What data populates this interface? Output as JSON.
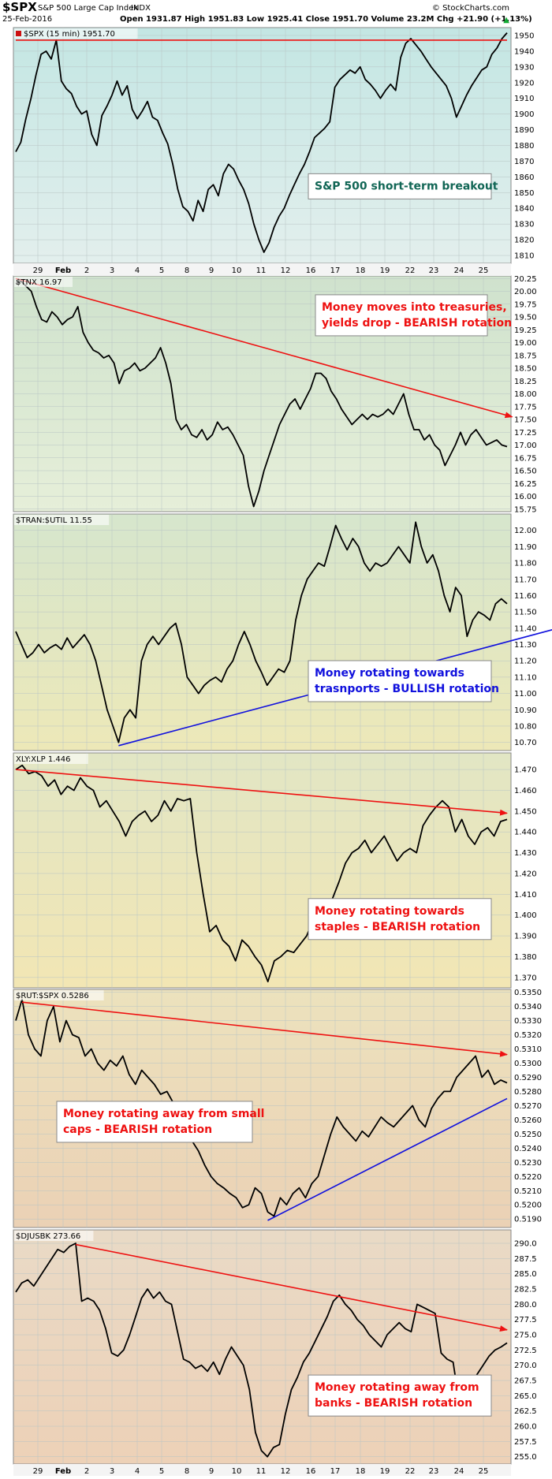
{
  "header": {
    "symbol": "$SPX",
    "name": "S&P 500 Large Cap Index",
    "exchange": "INDX",
    "date": "25-Feb-2016",
    "ohlc": "Open 1931.87  High 1951.83  Low 1925.41  Close 1951.70  Volume 23.2M  Chg +21.90 (+1.13%)",
    "arrow": "▲",
    "watermark": "© StockCharts.com"
  },
  "x_labels": [
    "29",
    "Feb",
    "2",
    "3",
    "4",
    "5",
    "8",
    "9",
    "10",
    "11",
    "12",
    "16",
    "17",
    "18",
    "19",
    "22",
    "23",
    "24",
    "25"
  ],
  "colors": {
    "price": "#000000",
    "red_line": "#ee1111",
    "blue_line": "#1111dd",
    "grid": "#b8c4c4"
  },
  "chart_data": [
    {
      "type": "line",
      "label": "$SPX (15 min) 1951.70",
      "legend_marker": true,
      "ylim": [
        1805,
        1955
      ],
      "y_ticks": [
        "1950",
        "1940",
        "1930",
        "1920",
        "1910",
        "1900",
        "1890",
        "1880",
        "1870",
        "1860",
        "1850",
        "1840",
        "1830",
        "1820",
        "1810"
      ],
      "bg": [
        "#c3e6e3",
        "#e3efed"
      ],
      "values": [
        1876,
        1882,
        1897,
        1910,
        1925,
        1938,
        1940,
        1935,
        1947,
        1921,
        1916,
        1913,
        1905,
        1900,
        1902,
        1887,
        1880,
        1899,
        1905,
        1912,
        1921,
        1912,
        1918,
        1903,
        1897,
        1902,
        1908,
        1898,
        1896,
        1888,
        1881,
        1868,
        1852,
        1841,
        1838,
        1832,
        1845,
        1838,
        1852,
        1855,
        1848,
        1862,
        1868,
        1865,
        1858,
        1852,
        1843,
        1830,
        1820,
        1812,
        1818,
        1828,
        1835,
        1840,
        1848,
        1855,
        1862,
        1868,
        1876,
        1885,
        1888,
        1891,
        1895,
        1917,
        1922,
        1925,
        1928,
        1926,
        1930,
        1922,
        1919,
        1915,
        1910,
        1915,
        1919,
        1915,
        1936,
        1945,
        1948,
        1944,
        1940,
        1935,
        1930,
        1926,
        1922,
        1918,
        1910,
        1898,
        1905,
        1912,
        1918,
        1923,
        1928,
        1930,
        1938,
        1942,
        1948,
        1951.7
      ],
      "title": "",
      "xlabel": "",
      "ylabel": "",
      "lines": [
        {
          "color": "red",
          "from": [
            0,
            1947
          ],
          "to": [
            97,
            1947
          ],
          "arrow": false
        }
      ],
      "annotation": {
        "text": [
          "S&P 500 short-term breakout"
        ],
        "color": "#116655",
        "position": "bottom-right"
      }
    },
    {
      "type": "line",
      "label": "$TNX 16.97",
      "legend_marker": false,
      "ylim": [
        15.7,
        20.3
      ],
      "y_ticks": [
        "20.25",
        "20.00",
        "19.75",
        "19.50",
        "19.25",
        "19.00",
        "18.75",
        "18.50",
        "18.25",
        "18.00",
        "17.75",
        "17.50",
        "17.25",
        "17.00",
        "16.75",
        "16.50",
        "16.25",
        "16.00",
        "15.75"
      ],
      "bg": [
        "#cfe2cd",
        "#e6efd9"
      ],
      "values": [
        20.15,
        20.2,
        20.1,
        20.0,
        19.7,
        19.45,
        19.4,
        19.6,
        19.5,
        19.35,
        19.45,
        19.5,
        19.7,
        19.2,
        19.0,
        18.85,
        18.8,
        18.7,
        18.75,
        18.6,
        18.2,
        18.45,
        18.5,
        18.6,
        18.45,
        18.5,
        18.6,
        18.7,
        18.9,
        18.6,
        18.2,
        17.5,
        17.3,
        17.4,
        17.2,
        17.15,
        17.3,
        17.1,
        17.2,
        17.45,
        17.3,
        17.35,
        17.2,
        17.0,
        16.8,
        16.2,
        15.8,
        16.1,
        16.5,
        16.8,
        17.1,
        17.4,
        17.6,
        17.8,
        17.9,
        17.7,
        17.9,
        18.1,
        18.4,
        18.4,
        18.3,
        18.05,
        17.9,
        17.7,
        17.55,
        17.4,
        17.5,
        17.6,
        17.5,
        17.6,
        17.55,
        17.6,
        17.7,
        17.6,
        17.8,
        18.0,
        17.6,
        17.3,
        17.3,
        17.1,
        17.2,
        17.0,
        16.9,
        16.6,
        16.8,
        17.0,
        17.25,
        17.0,
        17.2,
        17.3,
        17.15,
        17.0,
        17.05,
        17.1,
        17.0,
        16.97
      ],
      "lines": [
        {
          "color": "red",
          "from": [
            0,
            20.25
          ],
          "to": [
            96,
            17.55
          ],
          "arrow": true
        }
      ],
      "annotation": {
        "text": [
          "Money moves into treasuries,",
          "yields drop - BEARISH rotation"
        ],
        "color": "#ee1111",
        "position": "top-right"
      }
    },
    {
      "type": "line",
      "label": "$TRAN:$UTIL 11.55",
      "legend_marker": false,
      "ylim": [
        10.65,
        12.1
      ],
      "y_ticks": [
        "12.00",
        "11.90",
        "11.80",
        "11.70",
        "11.60",
        "11.50",
        "11.40",
        "11.30",
        "11.20",
        "11.10",
        "11.00",
        "10.90",
        "10.80",
        "10.70"
      ],
      "bg": [
        "#d6e6cd",
        "#ede8b8"
      ],
      "values": [
        11.38,
        11.3,
        11.22,
        11.25,
        11.3,
        11.25,
        11.28,
        11.3,
        11.27,
        11.34,
        11.28,
        11.32,
        11.36,
        11.3,
        11.2,
        11.05,
        10.9,
        10.8,
        10.7,
        10.85,
        10.9,
        10.85,
        11.2,
        11.3,
        11.35,
        11.3,
        11.35,
        11.4,
        11.43,
        11.3,
        11.1,
        11.05,
        11.0,
        11.05,
        11.08,
        11.1,
        11.07,
        11.15,
        11.2,
        11.3,
        11.38,
        11.3,
        11.2,
        11.13,
        11.05,
        11.1,
        11.15,
        11.13,
        11.2,
        11.45,
        11.6,
        11.7,
        11.75,
        11.8,
        11.78,
        11.9,
        12.03,
        11.95,
        11.88,
        11.95,
        11.9,
        11.8,
        11.75,
        11.8,
        11.78,
        11.8,
        11.85,
        11.9,
        11.85,
        11.8,
        12.05,
        11.9,
        11.8,
        11.85,
        11.75,
        11.6,
        11.5,
        11.65,
        11.6,
        11.35,
        11.45,
        11.5,
        11.48,
        11.45,
        11.55,
        11.58,
        11.55
      ],
      "lines": [
        {
          "color": "blue",
          "from": [
            18,
            10.68
          ],
          "to": [
            96,
            11.41
          ],
          "arrow": true
        }
      ],
      "annotation": {
        "text": [
          "Money rotating towards",
          "trasnports - BULLISH rotation"
        ],
        "color": "#1111dd",
        "position": "bottom-right"
      }
    },
    {
      "type": "line",
      "label": "XLY:XLP 1.446",
      "legend_marker": false,
      "ylim": [
        1.365,
        1.478
      ],
      "y_ticks": [
        "1.470",
        "1.460",
        "1.450",
        "1.440",
        "1.430",
        "1.420",
        "1.410",
        "1.400",
        "1.390",
        "1.380",
        "1.370"
      ],
      "bg": [
        "#e2e6c4",
        "#f2e6b4"
      ],
      "values": [
        1.47,
        1.472,
        1.468,
        1.469,
        1.467,
        1.462,
        1.465,
        1.458,
        1.462,
        1.46,
        1.466,
        1.462,
        1.46,
        1.452,
        1.455,
        1.45,
        1.445,
        1.438,
        1.445,
        1.448,
        1.45,
        1.445,
        1.448,
        1.455,
        1.45,
        1.456,
        1.455,
        1.456,
        1.43,
        1.41,
        1.392,
        1.395,
        1.388,
        1.385,
        1.378,
        1.388,
        1.385,
        1.38,
        1.376,
        1.368,
        1.378,
        1.38,
        1.383,
        1.382,
        1.386,
        1.39,
        1.398,
        1.402,
        1.4,
        1.408,
        1.416,
        1.425,
        1.43,
        1.432,
        1.436,
        1.43,
        1.434,
        1.438,
        1.432,
        1.426,
        1.43,
        1.432,
        1.43,
        1.443,
        1.448,
        1.452,
        1.455,
        1.452,
        1.44,
        1.446,
        1.438,
        1.434,
        1.44,
        1.442,
        1.438,
        1.445,
        1.446
      ],
      "lines": [
        {
          "color": "red",
          "from": [
            0,
            1.47
          ],
          "to": [
            76,
            1.449
          ],
          "arrow": true
        }
      ],
      "annotation": {
        "text": [
          "Money rotating towards",
          "staples - BEARISH rotation"
        ],
        "color": "#ee1111",
        "position": "bottom-right"
      }
    },
    {
      "type": "line",
      "label": "$RUT:$SPX 0.5286",
      "legend_marker": false,
      "ylim": [
        0.5184,
        0.5352
      ],
      "y_ticks": [
        "0.5350",
        "0.5340",
        "0.5330",
        "0.5320",
        "0.5310",
        "0.5300",
        "0.5290",
        "0.5280",
        "0.5270",
        "0.5260",
        "0.5250",
        "0.5240",
        "0.5230",
        "0.5220",
        "0.5210",
        "0.5200",
        "0.5190"
      ],
      "bg": [
        "#ece2bd",
        "#ebd1b5"
      ],
      "values": [
        0.533,
        0.5345,
        0.532,
        0.531,
        0.5305,
        0.533,
        0.534,
        0.5315,
        0.533,
        0.532,
        0.5318,
        0.5305,
        0.531,
        0.53,
        0.5295,
        0.5302,
        0.5298,
        0.5305,
        0.5292,
        0.5285,
        0.5295,
        0.529,
        0.5285,
        0.5278,
        0.528,
        0.5272,
        0.5268,
        0.5255,
        0.5245,
        0.5238,
        0.5228,
        0.522,
        0.5215,
        0.5212,
        0.5208,
        0.5205,
        0.5198,
        0.52,
        0.5212,
        0.5208,
        0.5195,
        0.5192,
        0.5205,
        0.52,
        0.5208,
        0.5212,
        0.5205,
        0.5215,
        0.522,
        0.5235,
        0.525,
        0.5262,
        0.5255,
        0.525,
        0.5245,
        0.5252,
        0.5248,
        0.5255,
        0.5262,
        0.5258,
        0.5255,
        0.526,
        0.5265,
        0.527,
        0.526,
        0.5255,
        0.5268,
        0.5275,
        0.528,
        0.528,
        0.529,
        0.5295,
        0.53,
        0.5305,
        0.529,
        0.5295,
        0.5285,
        0.5288,
        0.5286
      ],
      "lines": [
        {
          "color": "red",
          "from": [
            1,
            0.5343
          ],
          "to": [
            78,
            0.5306
          ],
          "arrow": true
        },
        {
          "color": "blue",
          "from": [
            40,
            0.5189
          ],
          "to": [
            78,
            0.5275
          ],
          "arrow": false
        }
      ],
      "annotation": {
        "text": [
          "Money rotating away from small",
          "caps - BEARISH rotation"
        ],
        "color": "#ee1111",
        "position": "center-left"
      }
    },
    {
      "type": "line",
      "label": "$DJUSBK 273.66",
      "legend_marker": false,
      "ylim": [
        253.8,
        292.2
      ],
      "y_ticks": [
        "290.0",
        "287.5",
        "285.0",
        "282.5",
        "280.0",
        "277.5",
        "275.0",
        "272.5",
        "270.0",
        "267.5",
        "265.0",
        "262.5",
        "260.0",
        "257.5",
        "255.0"
      ],
      "bg": [
        "#e9dac6",
        "#edd1b7"
      ],
      "values": [
        282.0,
        283.5,
        284.0,
        283.0,
        284.5,
        286.0,
        287.5,
        289.0,
        288.5,
        289.5,
        290.0,
        280.5,
        281.0,
        280.5,
        279.0,
        276.0,
        272.0,
        271.5,
        272.5,
        275.0,
        278.0,
        281.0,
        282.5,
        281.0,
        282.0,
        280.5,
        280.0,
        275.5,
        271.0,
        270.5,
        269.5,
        270.0,
        269.0,
        270.5,
        268.5,
        271.0,
        273.0,
        271.5,
        270.0,
        266.0,
        259.0,
        256.0,
        255.0,
        256.5,
        257.0,
        262.0,
        266.0,
        268.0,
        270.5,
        272.0,
        274.0,
        276.0,
        278.0,
        280.5,
        281.5,
        280.0,
        279.0,
        277.5,
        276.5,
        275.0,
        274.0,
        273.0,
        275.0,
        276.0,
        277.0,
        276.0,
        275.5,
        280.0,
        279.5,
        279.0,
        278.5,
        272.0,
        271.0,
        270.5,
        264.0,
        265.0,
        267.0,
        268.5,
        270.0,
        271.5,
        272.5,
        273.0,
        273.66
      ],
      "lines": [
        {
          "color": "red",
          "from": [
            10,
            289.8
          ],
          "to": [
            82,
            275.8
          ],
          "arrow": true
        }
      ],
      "annotation": {
        "text": [
          "Money rotating away from",
          "banks - BEARISH rotation"
        ],
        "color": "#ee1111",
        "position": "bottom-right"
      }
    }
  ]
}
